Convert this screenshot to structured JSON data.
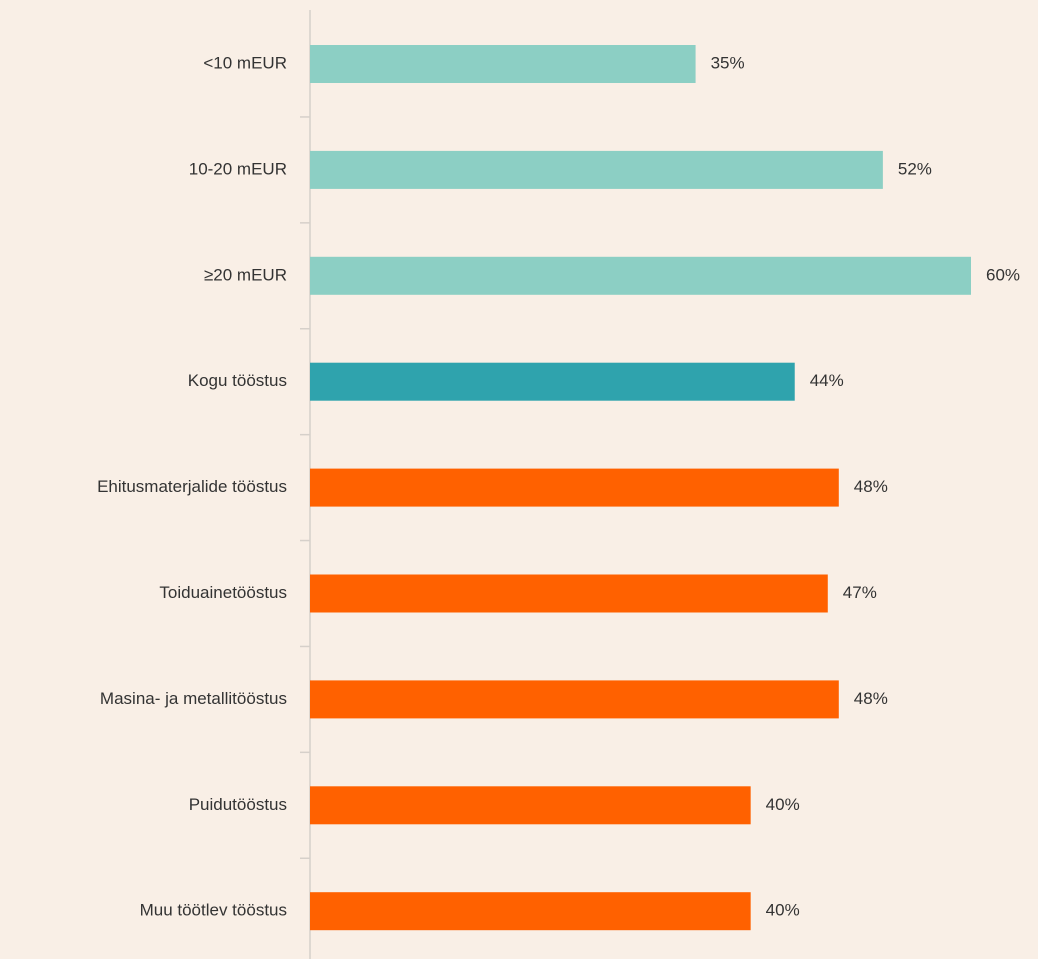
{
  "chart_data": {
    "type": "hbar",
    "categories": [
      "<10 mEUR",
      "10-20 mEUR",
      "≥20 mEUR",
      "Kogu tööstus",
      "Ehitusmaterjalide tööstus",
      "Toiduainetööstus",
      "Masina- ja metallitööstus",
      "Puidutööstus",
      "Muu töötlev tööstus"
    ],
    "values": [
      35,
      52,
      60,
      44,
      48,
      47,
      48,
      40,
      40
    ],
    "value_labels": [
      "35%",
      "52%",
      "60%",
      "44%",
      "48%",
      "47%",
      "48%",
      "40%",
      "40%"
    ],
    "colors": [
      "#8ccfc4",
      "#8ccfc4",
      "#8ccfc4",
      "#2fa3ad",
      "#ff6100",
      "#ff6100",
      "#ff6100",
      "#ff6100",
      "#ff6100"
    ]
  }
}
